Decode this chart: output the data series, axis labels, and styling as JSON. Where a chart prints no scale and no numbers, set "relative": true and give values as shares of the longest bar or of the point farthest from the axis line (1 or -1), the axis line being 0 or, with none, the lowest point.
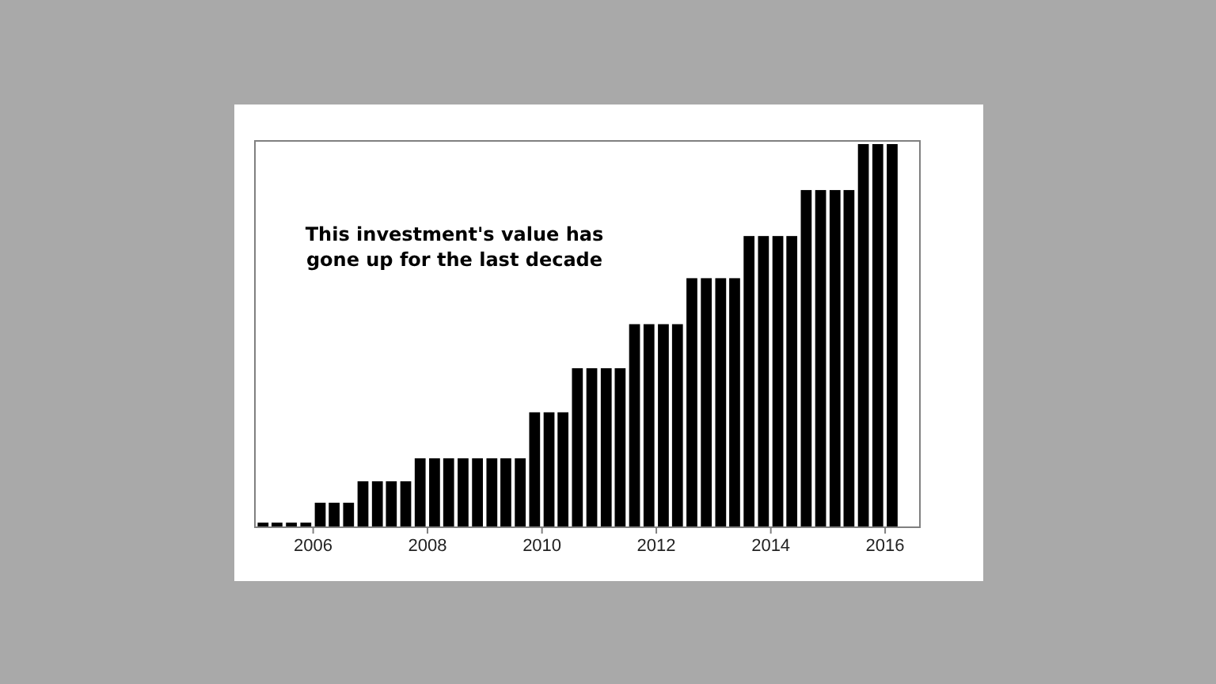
{
  "chart_data": {
    "type": "bar",
    "relative": true,
    "color": "#000000",
    "x": [
      "2005-02-15",
      "2005-05-15",
      "2005-08-15",
      "2005-11-15",
      "2006-02-15",
      "2006-05-15",
      "2006-08-15",
      "2006-11-15",
      "2007-02-15",
      "2007-05-15",
      "2007-08-15",
      "2007-11-15",
      "2008-02-15",
      "2008-05-15",
      "2008-08-15",
      "2008-11-15",
      "2009-02-15",
      "2009-05-15",
      "2009-08-15",
      "2009-11-15",
      "2010-02-15",
      "2010-05-15",
      "2010-08-15",
      "2010-11-15",
      "2011-02-15",
      "2011-05-15",
      "2011-08-15",
      "2011-11-15",
      "2012-02-15",
      "2012-05-15",
      "2012-08-15",
      "2012-11-15",
      "2013-02-15",
      "2013-05-15",
      "2013-08-15",
      "2013-11-15",
      "2014-02-15",
      "2014-05-15",
      "2014-08-15",
      "2014-11-15",
      "2015-02-15",
      "2015-05-15",
      "2015-08-15",
      "2015-11-15",
      "2016-02-15"
    ],
    "values": [
      0.012,
      0.012,
      0.012,
      0.012,
      0.064,
      0.064,
      0.064,
      0.12,
      0.12,
      0.12,
      0.12,
      0.18,
      0.18,
      0.18,
      0.18,
      0.18,
      0.18,
      0.18,
      0.18,
      0.3,
      0.3,
      0.3,
      0.415,
      0.415,
      0.415,
      0.415,
      0.53,
      0.53,
      0.53,
      0.53,
      0.65,
      0.65,
      0.65,
      0.65,
      0.76,
      0.76,
      0.76,
      0.76,
      0.88,
      0.88,
      0.88,
      0.88,
      1,
      1,
      1
    ],
    "xlim": [
      "2004-12-25",
      "2016-08-10"
    ],
    "xticks": [
      "2006",
      "2008",
      "2010",
      "2012",
      "2014",
      "2016"
    ],
    "annotations": [
      "This investment's value has\ngone up for the last decade"
    ],
    "grid": false
  }
}
